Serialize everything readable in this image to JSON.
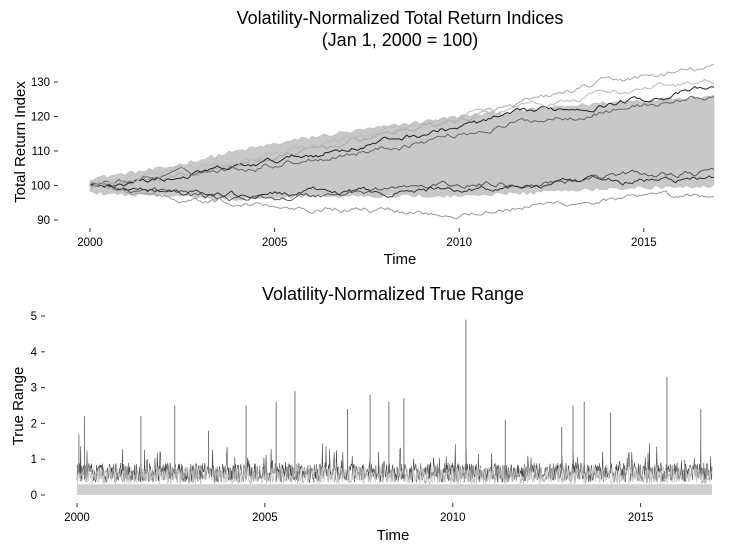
{
  "chart_data": [
    {
      "type": "line",
      "title": "Volatility-Normalized Total Return Indices",
      "subtitle": "(Jan 1, 2000 = 100)",
      "xlabel": "Time",
      "ylabel": "Total Return Index",
      "x_ticks": [
        2000,
        2005,
        2010,
        2015
      ],
      "y_ticks": [
        90,
        100,
        110,
        120,
        130
      ],
      "xlim": [
        2000,
        2016.9
      ],
      "ylim": [
        88,
        137
      ],
      "grid": false,
      "legend": "none",
      "series_count": "many (grey-scale, one per instrument)",
      "series": [
        {
          "color": "#aaaaaa",
          "x": [
            2000,
            2002,
            2004,
            2006,
            2008,
            2010,
            2012,
            2014,
            2016.9
          ],
          "values": [
            100,
            102,
            106,
            110,
            115,
            119,
            124,
            130,
            134
          ]
        },
        {
          "color": "#222222",
          "x": [
            2000,
            2002,
            2004,
            2006,
            2008,
            2010,
            2012,
            2014,
            2016.9
          ],
          "values": [
            100,
            102,
            105,
            109,
            113,
            117,
            121,
            124,
            128
          ]
        },
        {
          "color": "#666666",
          "x": [
            2000,
            2002,
            2004,
            2006,
            2008,
            2010,
            2012,
            2014,
            2016.9
          ],
          "values": [
            100,
            103,
            105,
            108,
            111,
            115,
            119,
            122,
            126
          ]
        },
        {
          "color": "#555555",
          "x": [
            2000,
            2002,
            2004,
            2006,
            2008,
            2010,
            2012,
            2014,
            2016.9
          ],
          "values": [
            100,
            98,
            96,
            97,
            99,
            100,
            101,
            103,
            104
          ]
        },
        {
          "color": "#333333",
          "x": [
            2000,
            2002,
            2004,
            2006,
            2008,
            2010,
            2012,
            2014,
            2016.9
          ],
          "values": [
            100,
            98,
            97,
            98,
            98,
            99,
            100,
            101,
            102
          ]
        },
        {
          "color": "#999999",
          "x": [
            2000,
            2002,
            2004,
            2006,
            2008,
            2010,
            2012,
            2014,
            2016.9
          ],
          "values": [
            100,
            97,
            95,
            94,
            93,
            92,
            94,
            96,
            96
          ]
        },
        {
          "color": "#bbbbbb",
          "x": [
            2000,
            2002,
            2004,
            2006,
            2008,
            2010,
            2012,
            2014,
            2016.9
          ],
          "values": [
            100,
            104,
            107,
            111,
            116,
            120,
            124,
            127,
            130
          ]
        }
      ],
      "band": {
        "color": "#c8c8c8",
        "x": [
          2000,
          2002,
          2004,
          2006,
          2008,
          2010,
          2012,
          2014,
          2016.9
        ],
        "upper": [
          102,
          105,
          110,
          114,
          117,
          120,
          122,
          124,
          126
        ],
        "lower": [
          98,
          97,
          96,
          97,
          97,
          97,
          98,
          99,
          100
        ]
      }
    },
    {
      "type": "line",
      "title": "Volatility-Normalized True Range",
      "xlabel": "Time",
      "ylabel": "True Range",
      "x_ticks": [
        2000,
        2005,
        2010,
        2015
      ],
      "y_ticks": [
        0,
        1,
        2,
        3,
        4,
        5
      ],
      "xlim": [
        2000,
        2016.9
      ],
      "ylim": [
        -0.1,
        5.1
      ],
      "grid": false,
      "legend": "none",
      "typical_range": [
        0.3,
        1.0
      ],
      "spikes": [
        {
          "x": 2000.05,
          "y": 1.7
        },
        {
          "x": 2000.2,
          "y": 2.2
        },
        {
          "x": 2001.7,
          "y": 2.2
        },
        {
          "x": 2002.6,
          "y": 2.5
        },
        {
          "x": 2003.5,
          "y": 1.8
        },
        {
          "x": 2004.5,
          "y": 2.5
        },
        {
          "x": 2005.3,
          "y": 2.6
        },
        {
          "x": 2005.8,
          "y": 2.9
        },
        {
          "x": 2007.2,
          "y": 2.4
        },
        {
          "x": 2007.8,
          "y": 2.8
        },
        {
          "x": 2008.3,
          "y": 2.6
        },
        {
          "x": 2008.7,
          "y": 2.7
        },
        {
          "x": 2010.35,
          "y": 4.9
        },
        {
          "x": 2011.4,
          "y": 2.1
        },
        {
          "x": 2012.9,
          "y": 1.9
        },
        {
          "x": 2013.2,
          "y": 2.5
        },
        {
          "x": 2013.5,
          "y": 2.6
        },
        {
          "x": 2014.2,
          "y": 2.3
        },
        {
          "x": 2015.7,
          "y": 3.3
        },
        {
          "x": 2016.6,
          "y": 2.4
        }
      ]
    }
  ]
}
